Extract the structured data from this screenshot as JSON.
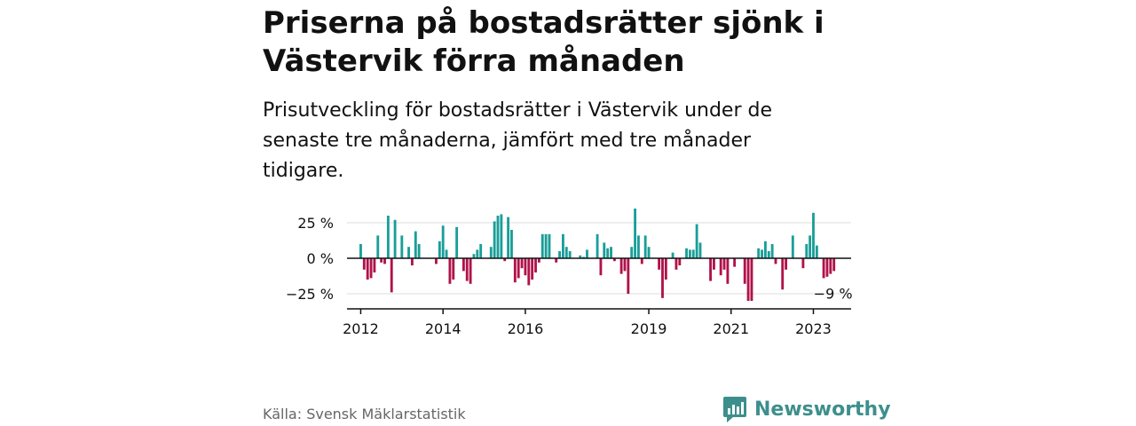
{
  "header": {
    "title": "Priserna på bostadsrätter sjönk i Västervik förra månaden",
    "subtitle": "Prisutveckling för bostadsrätter i Västervik under de senaste tre månaderna, jämfört med tre månader tidigare."
  },
  "footer": {
    "source": "Källa: Svensk Mäklarstatistik",
    "brand": "Newsworthy",
    "brand_icon": "bar-chart-logo-icon"
  },
  "colors": {
    "positive": "#1a9e98",
    "negative": "#b0124a",
    "brand": "#3d8f8c",
    "axis": "#111111",
    "grid": "#dddddd"
  },
  "chart_data": {
    "type": "bar",
    "title": "Priserna på bostadsrätter sjönk i Västervik förra månaden",
    "xlabel": "",
    "ylabel": "",
    "ylim": [
      -35,
      35
    ],
    "y_ticks": [
      25,
      0,
      -25
    ],
    "y_tick_labels": [
      "25 %",
      "0 %",
      "−25 %"
    ],
    "x_ticks": [
      {
        "year": 2012,
        "label": "2012"
      },
      {
        "year": 2014,
        "label": "2014"
      },
      {
        "year": 2016,
        "label": "2016"
      },
      {
        "year": 2019,
        "label": "2019"
      },
      {
        "year": 2021,
        "label": "2021"
      },
      {
        "year": 2023,
        "label": "2023"
      }
    ],
    "start": "2012-01",
    "end": "2023-12",
    "grid": true,
    "annotation": {
      "label": "−9 %",
      "index": "last"
    },
    "values": [
      10,
      -8,
      -15,
      -14,
      -10,
      16,
      -3,
      -4,
      30,
      -24,
      27,
      0,
      16,
      0,
      8,
      -5,
      19,
      10,
      0,
      0,
      0,
      0,
      -4,
      12,
      23,
      6,
      -18,
      -15,
      22,
      0,
      -9,
      -16,
      -18,
      3,
      6,
      10,
      0,
      0,
      8,
      26,
      30,
      31,
      -2,
      29,
      20,
      -17,
      -14,
      -7,
      -12,
      -19,
      -15,
      -10,
      -3,
      17,
      17,
      17,
      0,
      -3,
      5,
      17,
      8,
      5,
      0,
      0,
      2,
      1,
      6,
      0,
      0,
      17,
      -12,
      11,
      7,
      8,
      -2,
      0,
      -11,
      -9,
      -25,
      8,
      35,
      16,
      -4,
      16,
      8,
      0,
      0,
      -8,
      -28,
      -15,
      0,
      4,
      -8,
      -5,
      0,
      7,
      6,
      6,
      24,
      11,
      0,
      0,
      -16,
      -8,
      0,
      -12,
      -8,
      -18,
      0,
      -6,
      0,
      0,
      -18,
      -30,
      -30,
      0,
      7,
      6,
      12,
      5,
      10,
      -4,
      0,
      -22,
      -8,
      0,
      16,
      0,
      0,
      -7,
      10,
      16,
      32,
      9,
      0,
      -14,
      -13,
      -11,
      -9
    ]
  }
}
